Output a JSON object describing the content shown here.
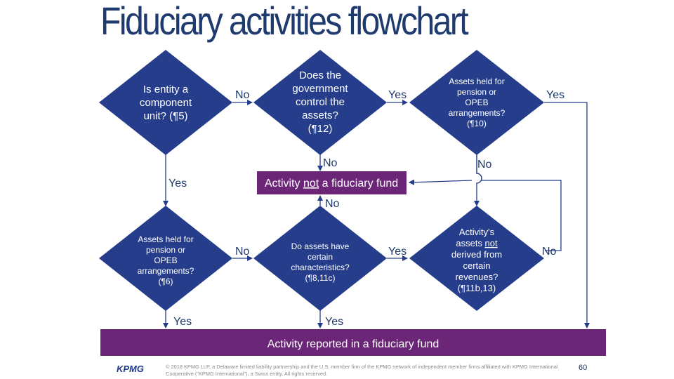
{
  "title": "Fiduciary activities flowchart",
  "nodes": {
    "d1": [
      "Is entity a",
      "component",
      "unit? (¶5)"
    ],
    "d2": [
      "Does the",
      "government",
      "control the",
      "assets?",
      "(¶12)"
    ],
    "d3": [
      "Assets held for",
      "pension or",
      "OPEB",
      "arrangements?",
      "(¶10)"
    ],
    "d4": [
      "Assets held for",
      "pension or",
      "OPEB",
      "arrangements?",
      "(¶6)"
    ],
    "d5": [
      "Do assets have",
      "certain",
      "characteristics?",
      "(¶8,11c)"
    ],
    "d6": [
      "Activity's",
      "assets not",
      "derived from",
      "certain",
      "revenues?",
      "(¶11b,13)"
    ]
  },
  "d6_line2_pre": "assets ",
  "d6_line2_emph": "not",
  "box_not_pre": "Activity ",
  "box_not_emph": "not",
  "box_not_post": " a fiduciary fund",
  "box_reported": "Activity reported in a fiduciary fund",
  "edge_labels": {
    "d1_no": "No",
    "d2_yes": "Yes",
    "d3_yes": "Yes",
    "d2_no": "No",
    "d3_no": "No",
    "d1_yes": "Yes",
    "d5_no": "No",
    "d4_no": "No",
    "d5_yes": "Yes",
    "d6_no": "No",
    "d4_yes": "Yes",
    "d5_yes_down": "Yes"
  },
  "footer": {
    "logo": "KPMG",
    "copyright": "© 2018 KPMG LLP, a Delaware limited liability partnership and the U.S. member firm of the KPMG network of independent member firms affiliated with KPMG International Cooperative (\"KPMG International\"), a Swiss entity. All rights reserved.",
    "page_number": "60"
  },
  "colors": {
    "diamond": "#253d8a",
    "connector": "#253d8a",
    "box": "#6b2677",
    "title": "#1e3a6e"
  }
}
